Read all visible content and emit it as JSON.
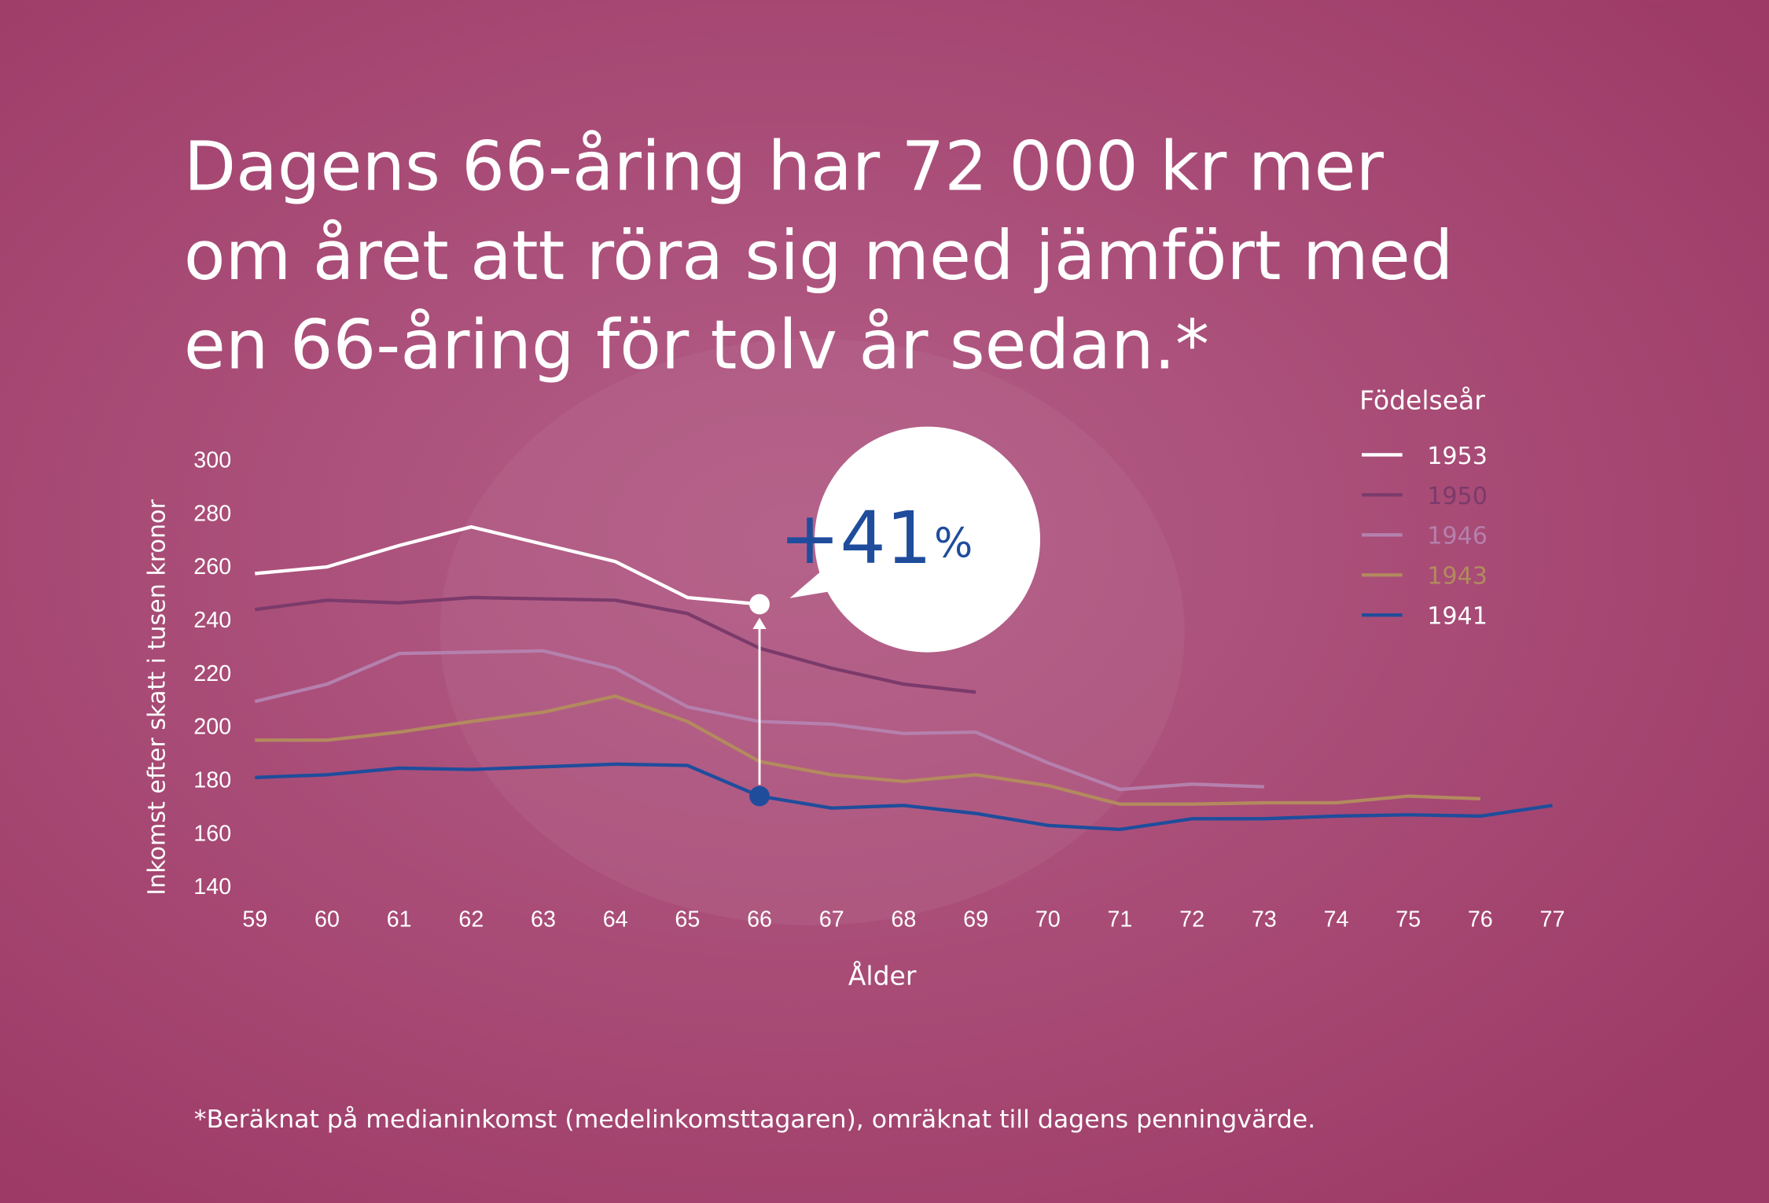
{
  "chart_data": {
    "type": "line",
    "title_lines": [
      "Dagens 66-åring har 72 000 kr mer",
      "om året att röra sig med jämfört med",
      "en 66-åring för tolv år sedan.*"
    ],
    "y_label": "Inkomst efter skatt i tusen kronor",
    "x_label": "Ålder",
    "legend_title": "Födelseår",
    "footnote": "*Beräknat på medianinkomst (medelinkomsttagaren), omräknat till dagens penningvärde.",
    "annotation": {
      "text": "+41",
      "unit": "%"
    },
    "x": [
      59,
      60,
      61,
      62,
      63,
      64,
      65,
      66,
      67,
      68,
      69,
      70,
      71,
      72,
      73,
      74,
      75,
      76,
      77
    ],
    "xlim": [
      59,
      77
    ],
    "xticks": [
      59,
      60,
      61,
      62,
      63,
      64,
      65,
      66,
      67,
      68,
      69,
      70,
      71,
      72,
      73,
      74,
      75,
      76,
      77
    ],
    "ylim": [
      140,
      300
    ],
    "yticks": [
      140,
      160,
      180,
      200,
      220,
      240,
      260,
      280,
      300
    ],
    "series": [
      {
        "name": "1953",
        "color": "#ffffff",
        "values": [
          258,
          260.5,
          268.5,
          275.5,
          269,
          262.5,
          249,
          246.5,
          null,
          null,
          null,
          null,
          null,
          null,
          null,
          null,
          null,
          null,
          null
        ]
      },
      {
        "name": "1950",
        "color": "#7b3a6b",
        "values": [
          244.5,
          248,
          247,
          249,
          248.5,
          248,
          243,
          230,
          222.5,
          216.5,
          213.5,
          null,
          null,
          null,
          null,
          null,
          null,
          null,
          null
        ]
      },
      {
        "name": "1946",
        "color": "#b580ad",
        "values": [
          210,
          216.5,
          228,
          228.5,
          229,
          222.5,
          208,
          202.5,
          201.5,
          198,
          198.5,
          187,
          177,
          179,
          178,
          null,
          null,
          null,
          null
        ]
      },
      {
        "name": "1943",
        "color": "#b38a5e",
        "values": [
          195.5,
          195.5,
          198.5,
          202.5,
          206,
          212,
          202.5,
          187.5,
          182.5,
          180,
          182.5,
          178.5,
          171.5,
          171.5,
          172,
          172,
          174.5,
          173.5,
          null
        ]
      },
      {
        "name": "1941",
        "color": "#1f4d9c",
        "values": [
          181.5,
          182.5,
          185,
          184.5,
          185.5,
          186.5,
          186,
          174.5,
          170,
          171,
          168,
          163.5,
          162,
          166,
          166,
          167,
          167.5,
          167,
          171
        ]
      }
    ]
  }
}
